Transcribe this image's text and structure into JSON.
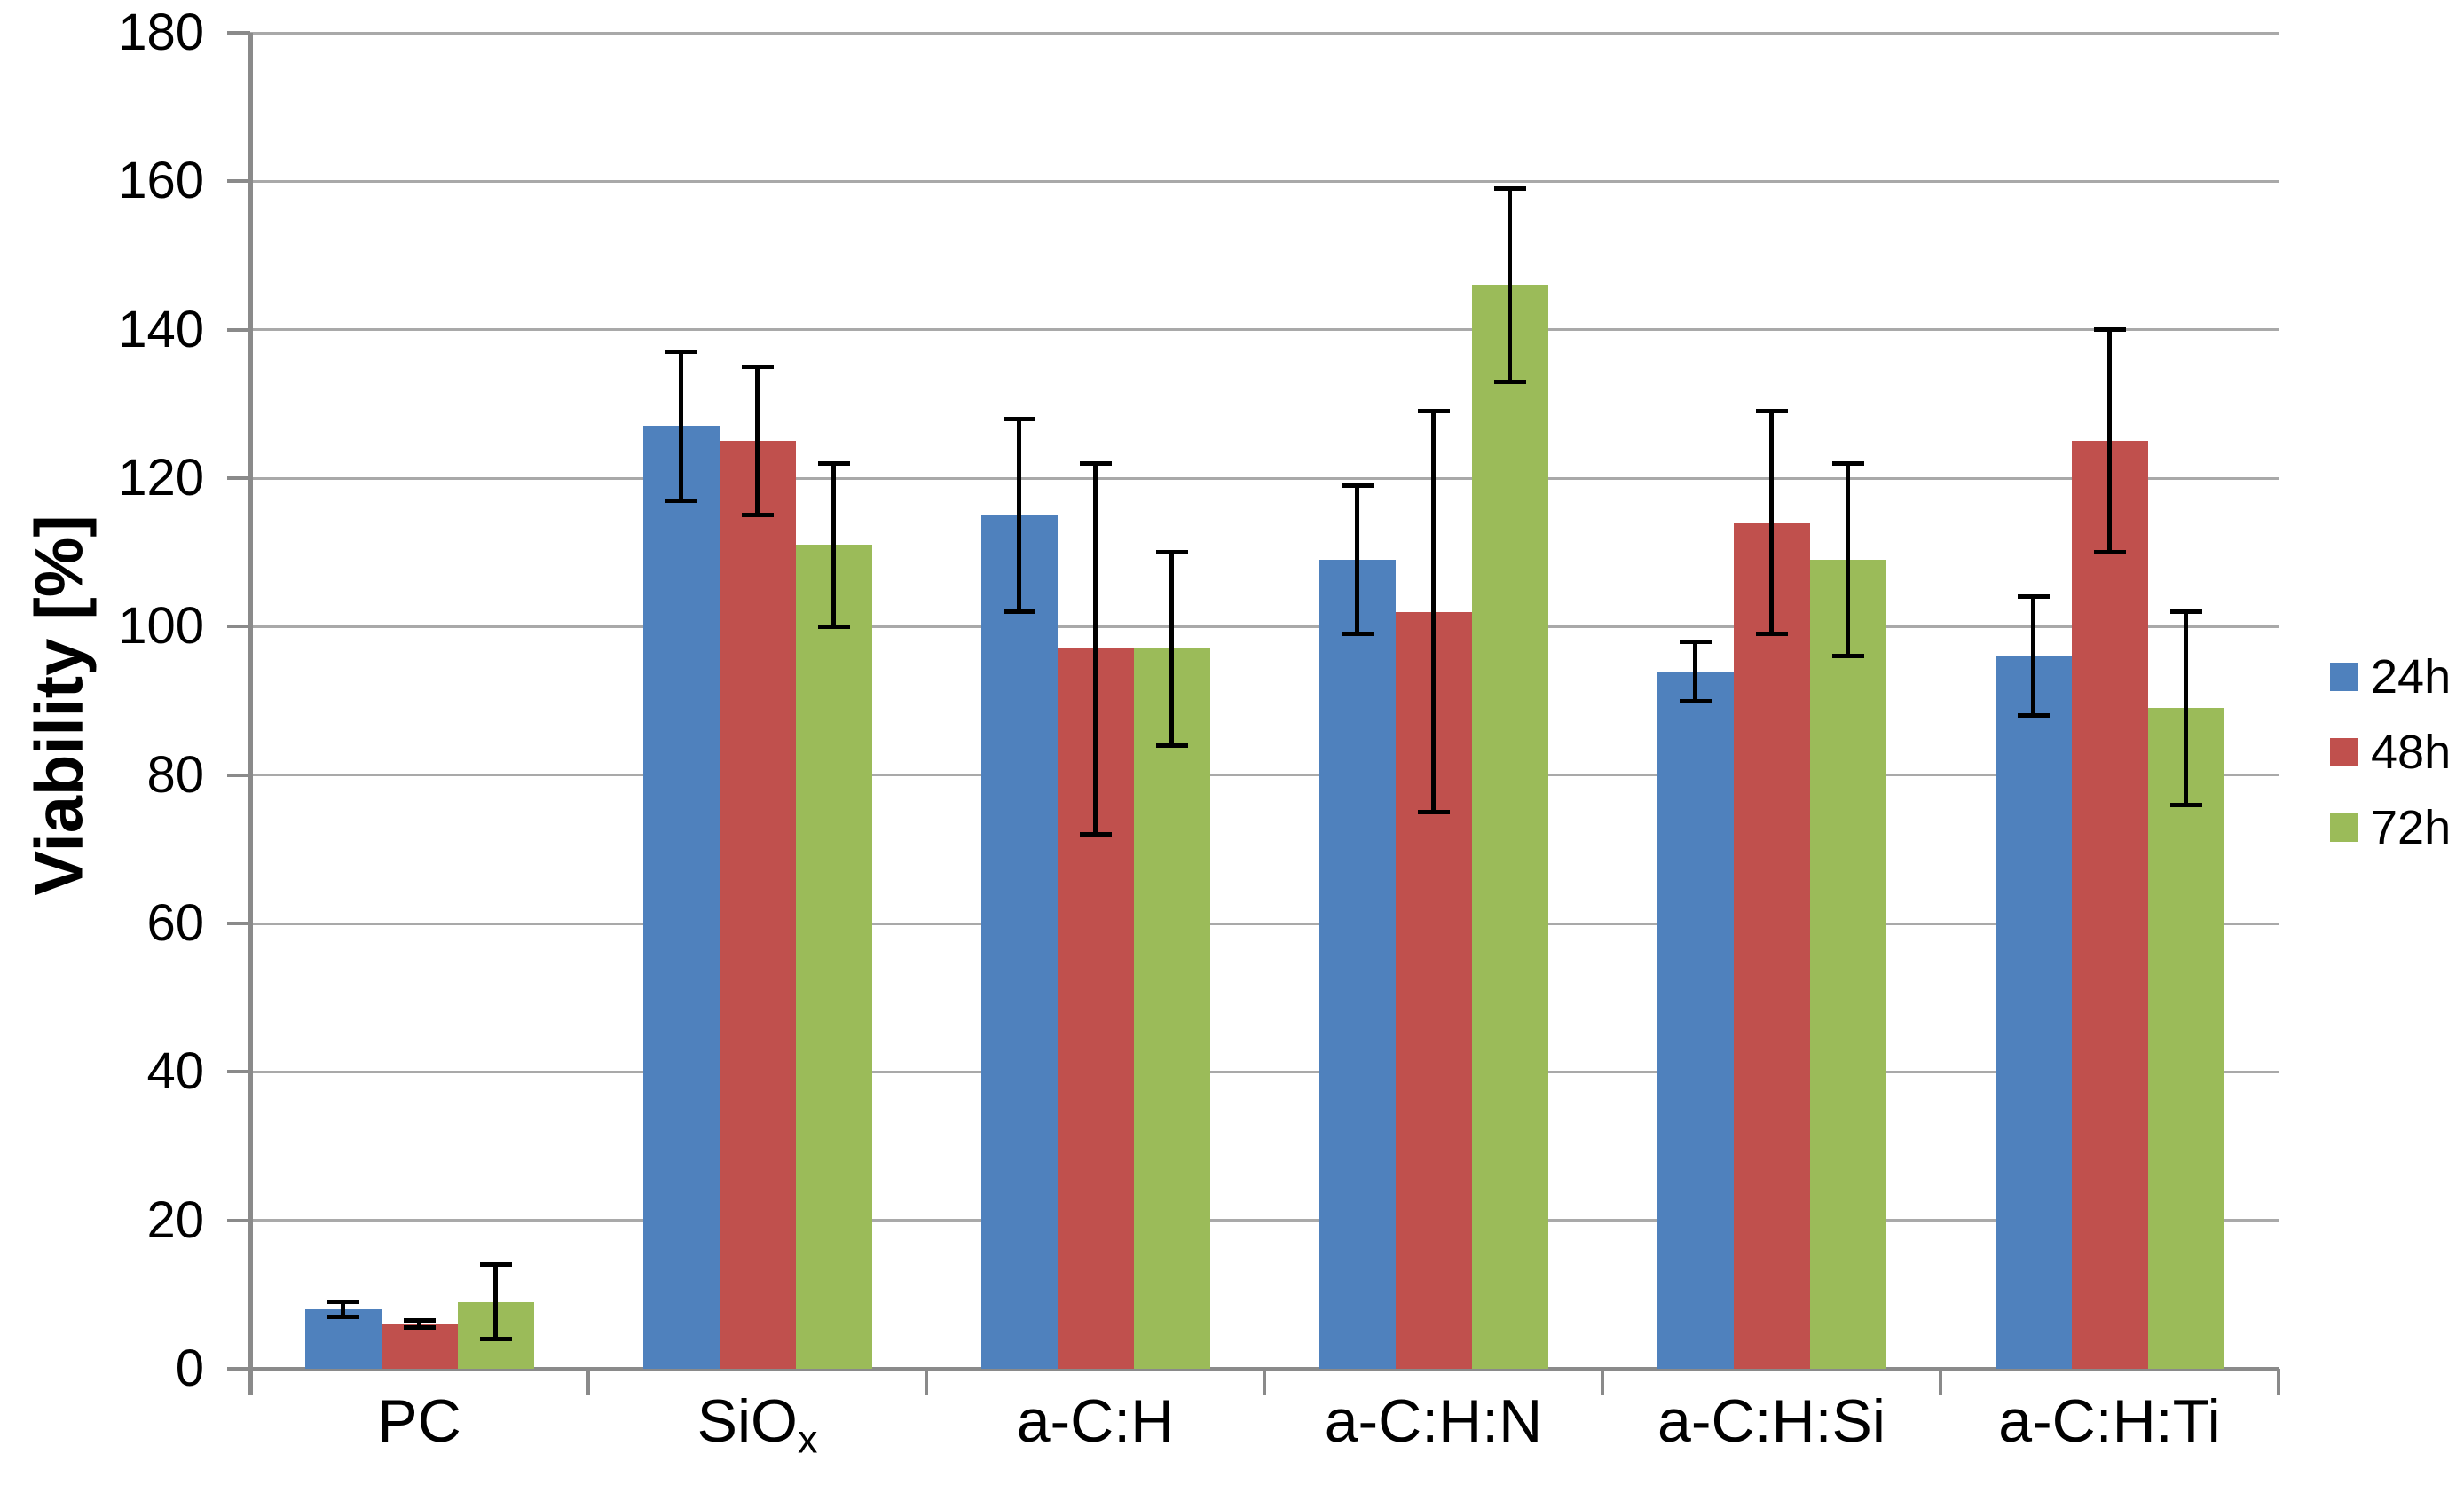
{
  "chart_data": {
    "type": "bar",
    "title": "",
    "xlabel": "",
    "ylabel": "Viability [%]",
    "ylim": [
      0,
      180
    ],
    "ytick_step": 20,
    "ytick_labels": [
      "0",
      "20",
      "40",
      "60",
      "80",
      "100",
      "120",
      "140",
      "160",
      "180"
    ],
    "grid": true,
    "legend_position": "right",
    "categories": [
      "PC",
      "SiOx",
      "a-C:H",
      "a-C:H:N",
      "a-C:H:Si",
      "a-C:H:Ti"
    ],
    "category_display": [
      {
        "base": "PC",
        "sub": ""
      },
      {
        "base": "SiO",
        "sub": "x"
      },
      {
        "base": "a-C:H",
        "sub": ""
      },
      {
        "base": "a-C:H:N",
        "sub": ""
      },
      {
        "base": "a-C:H:Si",
        "sub": ""
      },
      {
        "base": "a-C:H:Ti",
        "sub": ""
      }
    ],
    "series": [
      {
        "name": "24h",
        "color": "#4F81BD",
        "values": [
          8,
          127,
          115,
          109,
          94,
          96
        ],
        "errors": [
          1,
          10,
          13,
          10,
          4,
          8
        ]
      },
      {
        "name": "48h",
        "color": "#C0504D",
        "values": [
          6,
          125,
          97,
          102,
          114,
          125
        ],
        "errors": [
          0.5,
          10,
          25,
          27,
          15,
          15
        ]
      },
      {
        "name": "72h",
        "color": "#9BBB59",
        "values": [
          9,
          111,
          97,
          146,
          109,
          89
        ],
        "errors": [
          5,
          11,
          13,
          13,
          13,
          13
        ]
      }
    ],
    "error_bar_color": "#000000"
  },
  "colors": {
    "background": "#FFFFFF",
    "gridline": "#A9A9A9",
    "axis": "#8A8A8A",
    "text": "#000000"
  }
}
